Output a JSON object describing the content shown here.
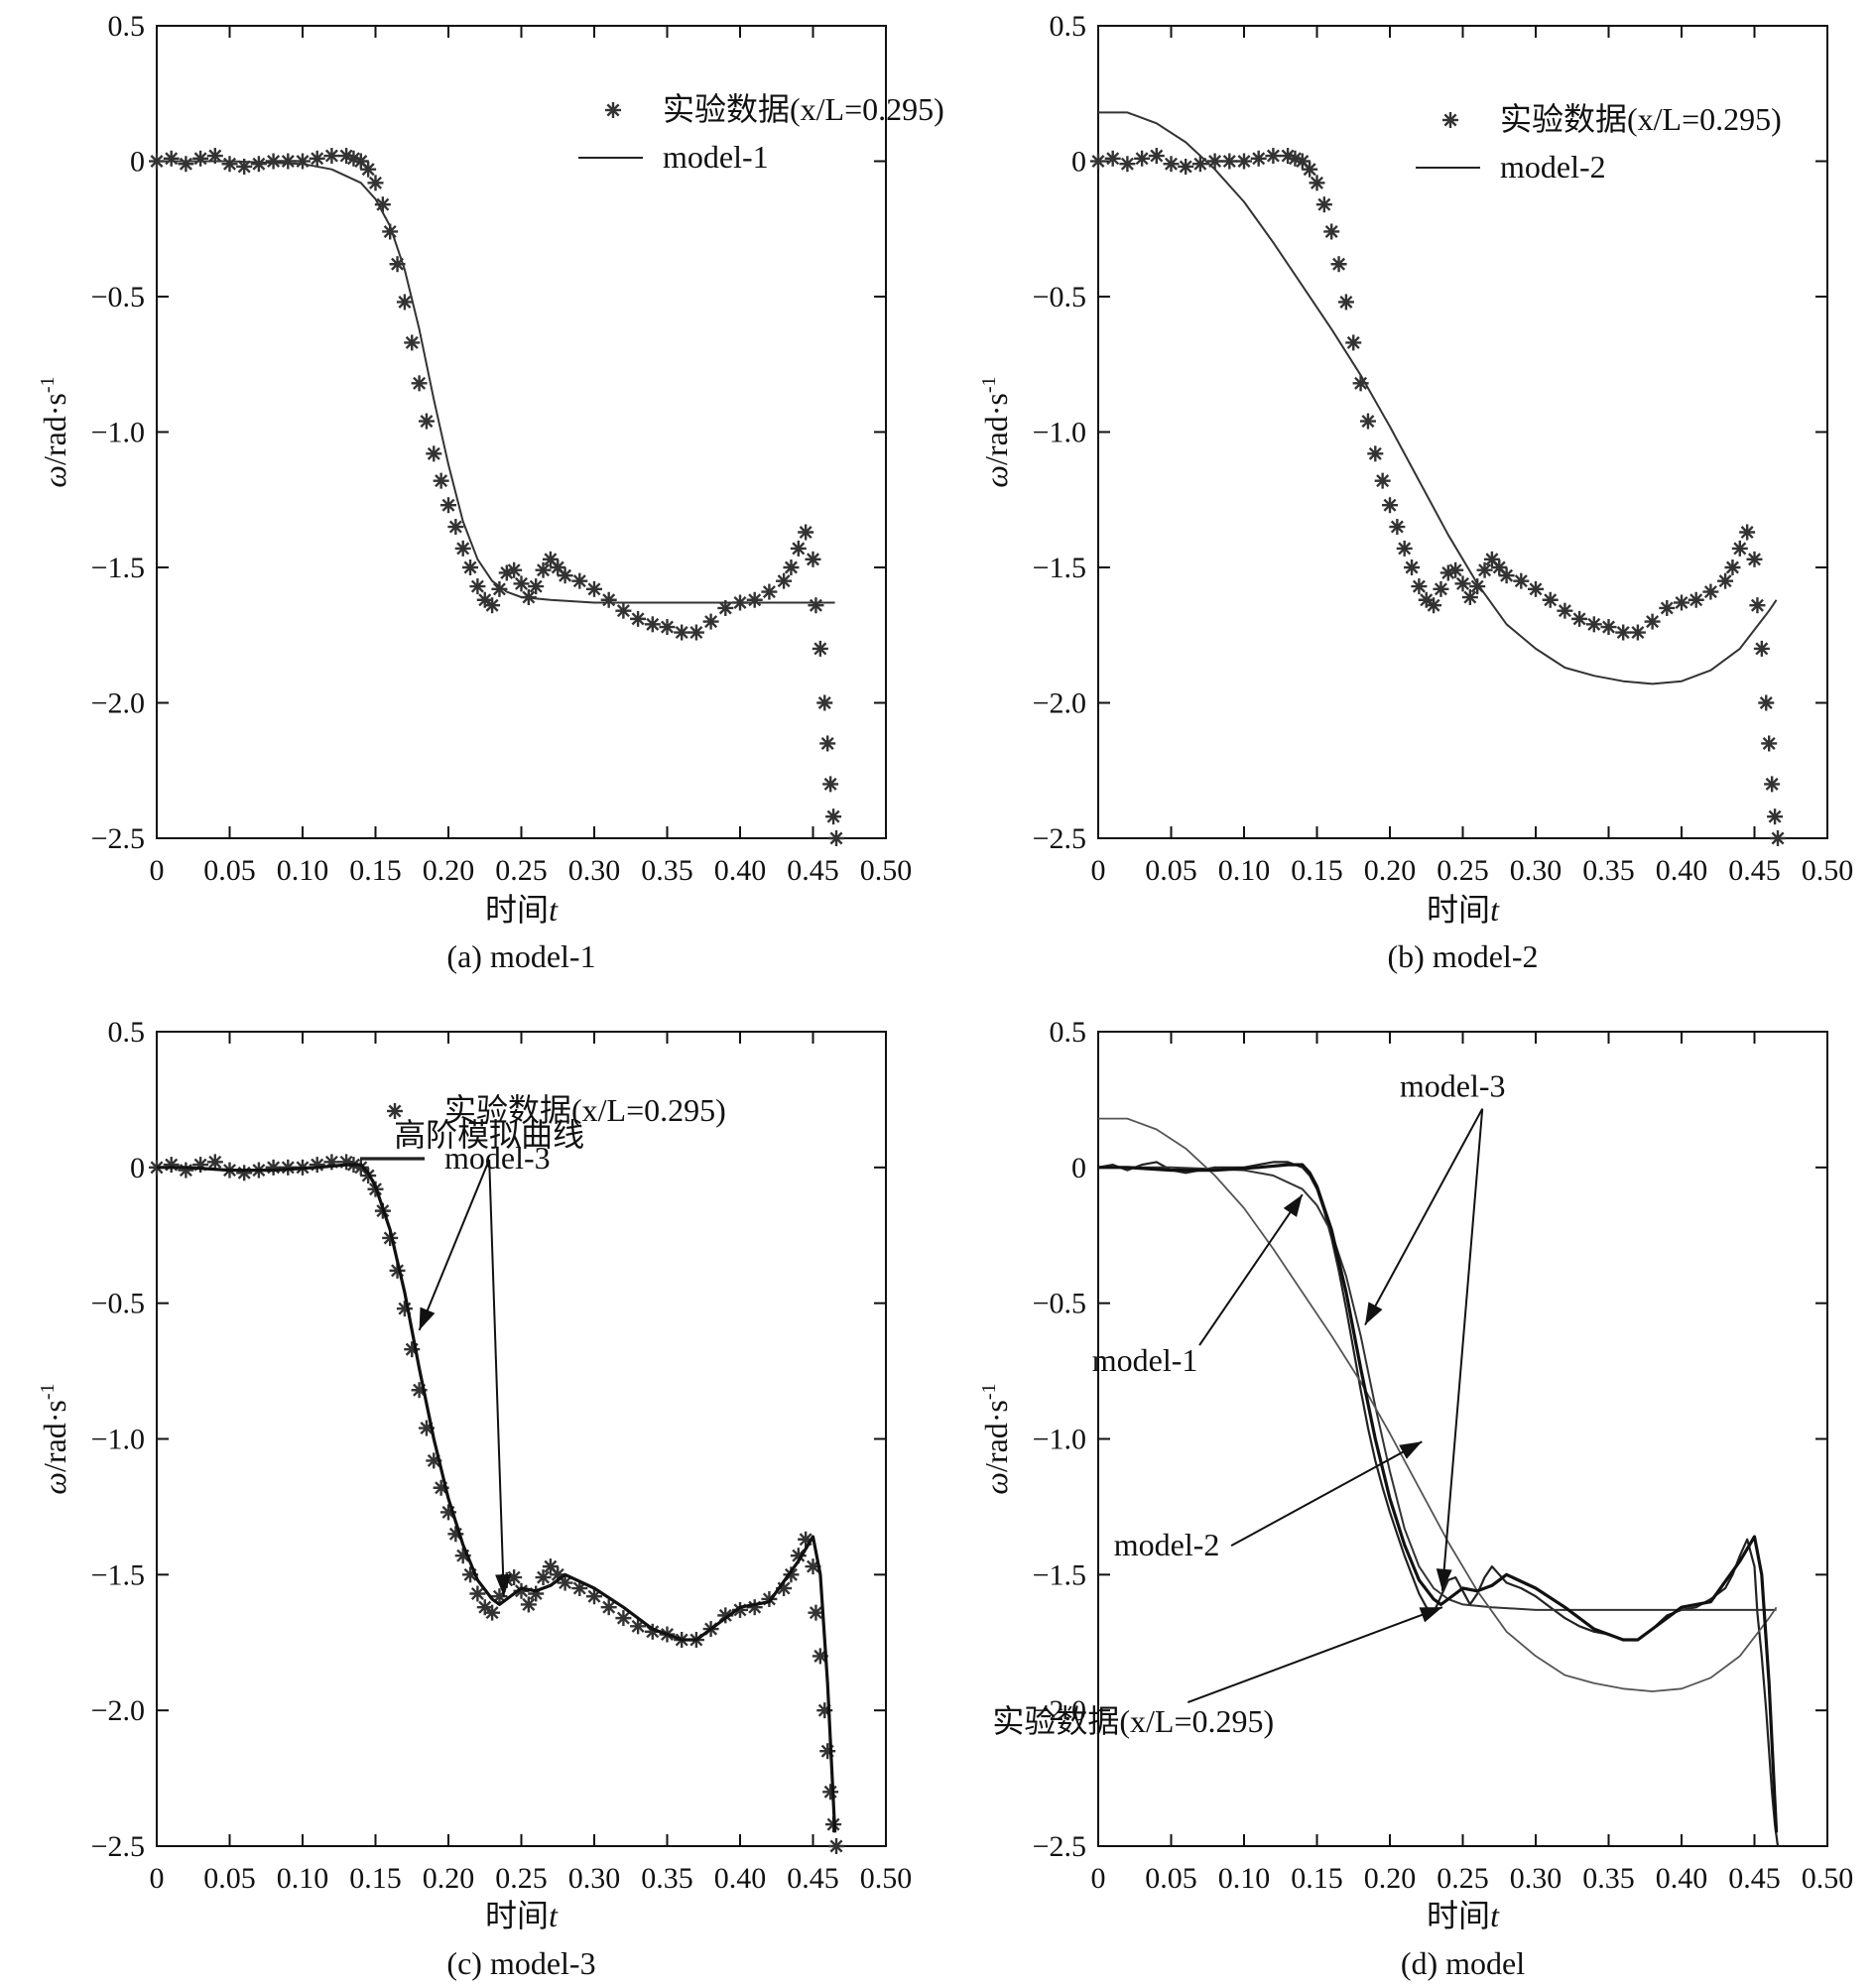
{
  "figure": {
    "panels": [
      "a",
      "b",
      "c",
      "d"
    ]
  },
  "chart_data": [
    {
      "id": "a",
      "type": "line",
      "caption": "(a) model-1",
      "xlabel": "时间",
      "xlabel_var": "t",
      "ylabel": "ω/rad·s",
      "ylabel_sup": "-1",
      "xlim": [
        0,
        0.5
      ],
      "ylim": [
        -2.5,
        0.5
      ],
      "xticks": [
        0,
        0.05,
        0.1,
        0.15,
        0.2,
        0.25,
        0.3,
        0.35,
        0.4,
        0.45,
        0.5
      ],
      "xtick_labels": [
        "0",
        "0.05",
        "0.10",
        "0.15",
        "0.20",
        "0.25",
        "0.30",
        "0.35",
        "0.40",
        "0.45",
        "0.50"
      ],
      "yticks": [
        0.5,
        0,
        -0.5,
        -1.0,
        -1.5,
        -2.0,
        -2.5
      ],
      "ytick_labels": [
        "0.5",
        "0",
        "−0.5",
        "−1.0",
        "−1.5",
        "−2.0",
        "−2.5"
      ],
      "legend": [
        {
          "label": "实验数据(x/L=0.295)",
          "marker": "star"
        },
        {
          "label": "model-1",
          "marker": "line"
        }
      ],
      "series": [
        {
          "name": "实验数据(x/L=0.295)",
          "style": "star",
          "source": "experiment"
        },
        {
          "name": "model-1",
          "style": "line",
          "source": "model1"
        }
      ],
      "annotations": []
    },
    {
      "id": "b",
      "type": "line",
      "caption": "(b) model-2",
      "xlabel": "时间",
      "xlabel_var": "t",
      "ylabel": "ω/rad·s",
      "ylabel_sup": "-1",
      "xlim": [
        0,
        0.5
      ],
      "ylim": [
        -2.5,
        0.5
      ],
      "xticks": [
        0,
        0.05,
        0.1,
        0.15,
        0.2,
        0.25,
        0.3,
        0.35,
        0.4,
        0.45,
        0.5
      ],
      "xtick_labels": [
        "0",
        "0.05",
        "0.10",
        "0.15",
        "0.20",
        "0.25",
        "0.30",
        "0.35",
        "0.40",
        "0.45",
        "0.50"
      ],
      "yticks": [
        0.5,
        0,
        -0.5,
        -1.0,
        -1.5,
        -2.0,
        -2.5
      ],
      "ytick_labels": [
        "0.5",
        "0",
        "−0.5",
        "−1.0",
        "−1.5",
        "−2.0",
        "−2.5"
      ],
      "legend": [
        {
          "label": "实验数据(x/L=0.295)",
          "marker": "star"
        },
        {
          "label": "model-2",
          "marker": "line"
        }
      ],
      "series": [
        {
          "name": "实验数据(x/L=0.295)",
          "style": "star",
          "source": "experiment"
        },
        {
          "name": "model-2",
          "style": "line",
          "source": "model2"
        }
      ],
      "annotations": []
    },
    {
      "id": "c",
      "type": "line",
      "caption": "(c) model-3",
      "xlabel": "时间",
      "xlabel_var": "t",
      "ylabel": "ω/rad·s",
      "ylabel_sup": "-1",
      "xlim": [
        0,
        0.5
      ],
      "ylim": [
        -2.5,
        0.5
      ],
      "xticks": [
        0,
        0.05,
        0.1,
        0.15,
        0.2,
        0.25,
        0.3,
        0.35,
        0.4,
        0.45,
        0.5
      ],
      "xtick_labels": [
        "0",
        "0.05",
        "0.10",
        "0.15",
        "0.20",
        "0.25",
        "0.30",
        "0.35",
        "0.40",
        "0.45",
        "0.50"
      ],
      "yticks": [
        0.5,
        0,
        -0.5,
        -1.0,
        -1.5,
        -2.0,
        -2.5
      ],
      "ytick_labels": [
        "0.5",
        "0",
        "−0.5",
        "−1.0",
        "−1.5",
        "−2.0",
        "−2.5"
      ],
      "legend": [
        {
          "label": "实验数据(x/L=0.295)",
          "marker": "star"
        },
        {
          "label": "model-3",
          "marker": "boldline"
        }
      ],
      "series": [
        {
          "name": "实验数据(x/L=0.295)",
          "style": "star",
          "source": "experiment"
        },
        {
          "name": "model-3",
          "style": "boldline",
          "source": "model3"
        }
      ],
      "annotations": [
        {
          "text": "高阶模拟曲线",
          "at": [
            0.228,
            0.08
          ],
          "arrows": [
            [
              0.18,
              -0.6
            ],
            [
              0.238,
              -1.58
            ]
          ]
        }
      ]
    },
    {
      "id": "d",
      "type": "line",
      "caption": "(d) model",
      "xlabel": "时间",
      "xlabel_var": "t",
      "ylabel": "ω/rad·s",
      "ylabel_sup": "-1",
      "xlim": [
        0,
        0.5
      ],
      "ylim": [
        -2.5,
        0.5
      ],
      "xticks": [
        0,
        0.05,
        0.1,
        0.15,
        0.2,
        0.25,
        0.3,
        0.35,
        0.4,
        0.45,
        0.5
      ],
      "xtick_labels": [
        "0",
        "0.05",
        "0.10",
        "0.15",
        "0.20",
        "0.25",
        "0.30",
        "0.35",
        "0.40",
        "0.45",
        "0.50"
      ],
      "yticks": [
        0.5,
        0,
        -0.5,
        -1.0,
        -1.5,
        -2.0,
        -2.5
      ],
      "ytick_labels": [
        "0.5",
        "0",
        "−0.5",
        "−1.0",
        "−1.5",
        "−2.0",
        "−2.5"
      ],
      "legend": [],
      "series": [
        {
          "name": "实验数据(x/L=0.295)",
          "style": "line",
          "source": "experiment"
        },
        {
          "name": "model-1",
          "style": "line",
          "source": "model1"
        },
        {
          "name": "model-2",
          "style": "thin",
          "source": "model2"
        },
        {
          "name": "model-3",
          "style": "boldline",
          "source": "model3"
        }
      ],
      "annotations": [
        {
          "text": "model-3",
          "at": [
            0.243,
            0.26
          ],
          "arrows": [
            [
              0.183,
              -0.58
            ],
            [
              0.236,
              -1.56
            ]
          ]
        },
        {
          "text": "model-1",
          "at": [
            0.032,
            -0.75
          ],
          "arrows": [
            [
              0.14,
              -0.1
            ]
          ]
        },
        {
          "text": "model-2",
          "at": [
            0.047,
            -1.43
          ],
          "arrows": [
            [
              0.222,
              -1.01
            ]
          ]
        },
        {
          "text": "实验数据(x/L=0.295)",
          "at": [
            0.024,
            -2.08
          ],
          "arrows": [
            [
              0.236,
              -1.62
            ]
          ]
        }
      ]
    }
  ],
  "experiment_data": {
    "t": [
      0.0,
      0.01,
      0.02,
      0.03,
      0.04,
      0.05,
      0.06,
      0.07,
      0.08,
      0.09,
      0.1,
      0.11,
      0.12,
      0.13,
      0.135,
      0.14,
      0.145,
      0.15,
      0.155,
      0.16,
      0.165,
      0.17,
      0.175,
      0.18,
      0.185,
      0.19,
      0.195,
      0.2,
      0.205,
      0.21,
      0.215,
      0.22,
      0.225,
      0.23,
      0.235,
      0.24,
      0.245,
      0.25,
      0.255,
      0.26,
      0.265,
      0.27,
      0.275,
      0.28,
      0.29,
      0.3,
      0.31,
      0.32,
      0.33,
      0.34,
      0.35,
      0.36,
      0.37,
      0.38,
      0.39,
      0.4,
      0.41,
      0.42,
      0.43,
      0.435,
      0.44,
      0.445,
      0.45,
      0.452,
      0.455,
      0.458,
      0.46,
      0.462,
      0.464,
      0.466
    ],
    "omega": [
      0.0,
      0.01,
      -0.01,
      0.01,
      0.02,
      -0.01,
      -0.02,
      -0.01,
      0.0,
      0.0,
      0.0,
      0.01,
      0.02,
      0.02,
      0.01,
      0.0,
      -0.03,
      -0.08,
      -0.16,
      -0.26,
      -0.38,
      -0.52,
      -0.67,
      -0.82,
      -0.96,
      -1.08,
      -1.18,
      -1.27,
      -1.35,
      -1.43,
      -1.5,
      -1.57,
      -1.62,
      -1.64,
      -1.58,
      -1.52,
      -1.51,
      -1.56,
      -1.61,
      -1.57,
      -1.51,
      -1.47,
      -1.5,
      -1.53,
      -1.55,
      -1.58,
      -1.62,
      -1.66,
      -1.69,
      -1.71,
      -1.72,
      -1.74,
      -1.74,
      -1.7,
      -1.65,
      -1.63,
      -1.62,
      -1.59,
      -1.55,
      -1.5,
      -1.43,
      -1.37,
      -1.47,
      -1.64,
      -1.8,
      -2.0,
      -2.15,
      -2.3,
      -2.42,
      -2.5
    ]
  },
  "model_data": {
    "model1": {
      "t": [
        0.0,
        0.05,
        0.1,
        0.12,
        0.14,
        0.15,
        0.16,
        0.17,
        0.18,
        0.19,
        0.2,
        0.21,
        0.22,
        0.23,
        0.24,
        0.25,
        0.27,
        0.3,
        0.35,
        0.4,
        0.45,
        0.465
      ],
      "omega": [
        0.0,
        0.0,
        -0.01,
        -0.03,
        -0.08,
        -0.14,
        -0.24,
        -0.4,
        -0.62,
        -0.88,
        -1.12,
        -1.33,
        -1.47,
        -1.55,
        -1.59,
        -1.61,
        -1.62,
        -1.63,
        -1.63,
        -1.63,
        -1.63,
        -1.63
      ]
    },
    "model2": {
      "t": [
        0.0,
        0.02,
        0.04,
        0.06,
        0.08,
        0.1,
        0.12,
        0.14,
        0.16,
        0.18,
        0.2,
        0.22,
        0.24,
        0.26,
        0.28,
        0.3,
        0.32,
        0.34,
        0.36,
        0.38,
        0.4,
        0.42,
        0.44,
        0.46,
        0.465
      ],
      "omega": [
        0.18,
        0.18,
        0.14,
        0.07,
        -0.03,
        -0.15,
        -0.3,
        -0.46,
        -0.62,
        -0.79,
        -0.98,
        -1.18,
        -1.38,
        -1.56,
        -1.71,
        -1.8,
        -1.87,
        -1.9,
        -1.92,
        -1.93,
        -1.92,
        -1.88,
        -1.8,
        -1.66,
        -1.62
      ]
    },
    "model3": {
      "t": [
        0.0,
        0.02,
        0.05,
        0.08,
        0.11,
        0.13,
        0.14,
        0.145,
        0.15,
        0.16,
        0.17,
        0.18,
        0.19,
        0.2,
        0.21,
        0.22,
        0.23,
        0.235,
        0.24,
        0.25,
        0.26,
        0.27,
        0.28,
        0.3,
        0.32,
        0.34,
        0.36,
        0.37,
        0.38,
        0.4,
        0.42,
        0.44,
        0.45,
        0.455,
        0.46,
        0.465
      ],
      "omega": [
        0.0,
        0.0,
        -0.01,
        -0.01,
        0.0,
        0.01,
        0.01,
        -0.02,
        -0.07,
        -0.23,
        -0.46,
        -0.74,
        -1.0,
        -1.22,
        -1.39,
        -1.52,
        -1.59,
        -1.61,
        -1.59,
        -1.55,
        -1.56,
        -1.54,
        -1.5,
        -1.55,
        -1.62,
        -1.7,
        -1.74,
        -1.74,
        -1.7,
        -1.62,
        -1.6,
        -1.45,
        -1.36,
        -1.5,
        -1.9,
        -2.45
      ]
    }
  }
}
